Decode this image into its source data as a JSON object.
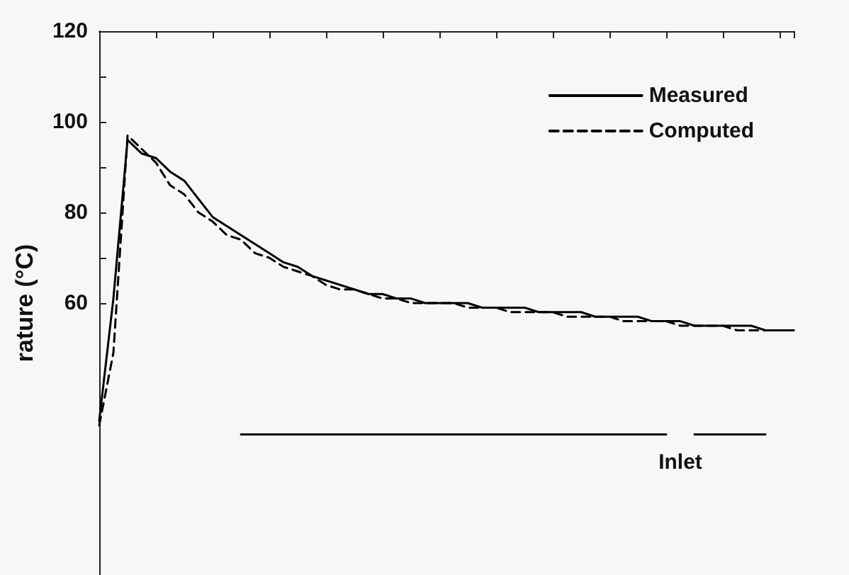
{
  "chart_data": {
    "type": "line",
    "ylabel": "rature (°C)",
    "categories": [
      null,
      null,
      null,
      null,
      null,
      null,
      null,
      null,
      null,
      null,
      null,
      null,
      null,
      null,
      null,
      null,
      null,
      null,
      null,
      null,
      null,
      null,
      null,
      null,
      null,
      null,
      null,
      null,
      null,
      null,
      null,
      null,
      null,
      null,
      null,
      null,
      null,
      null,
      null,
      null,
      null,
      null,
      null,
      null,
      null,
      null,
      null,
      null,
      null,
      null
    ],
    "series": [
      {
        "name": "Measured",
        "color": "#000000",
        "line_style": "solid",
        "values": [
          34,
          61,
          96,
          93,
          92,
          89,
          87,
          83,
          79,
          77,
          75,
          73,
          71,
          69,
          68,
          66,
          65,
          64,
          63,
          62,
          62,
          61,
          61,
          60,
          60,
          60,
          60,
          59,
          59,
          59,
          59,
          58,
          58,
          58,
          58,
          57,
          57,
          57,
          57,
          56,
          56,
          56,
          55,
          55,
          55,
          55,
          55,
          54,
          54,
          54
        ]
      },
      {
        "name": "Computed",
        "color": "#000000",
        "line_style": "dashed",
        "values": [
          33,
          49,
          97,
          94,
          91,
          86,
          84,
          80,
          78,
          75,
          74,
          71,
          70,
          68,
          67,
          66,
          64,
          63,
          63,
          62,
          61,
          61,
          60,
          60,
          60,
          60,
          59,
          59,
          59,
          58,
          58,
          58,
          58,
          57,
          57,
          57,
          57,
          56,
          56,
          56,
          56,
          55,
          55,
          55,
          55,
          54,
          54,
          54,
          54,
          54
        ]
      },
      {
        "name": "Inlet",
        "color": "#000000",
        "line_style": "solid",
        "values": [
          null,
          null,
          null,
          null,
          null,
          null,
          null,
          null,
          null,
          null,
          31,
          31,
          31,
          31,
          31,
          31,
          31,
          31,
          31,
          31,
          31,
          31,
          31,
          31,
          31,
          31,
          31,
          31,
          31,
          31,
          31,
          31,
          31,
          31,
          31,
          31,
          31,
          31,
          31,
          31,
          31,
          null,
          31,
          31,
          31,
          31,
          31,
          31,
          null,
          null
        ]
      }
    ],
    "ylim": [
      0,
      120
    ],
    "yticks": [
      60,
      {
        "value": 70,
        "label": null
      },
      80,
      {
        "value": 90,
        "label": null
      },
      100,
      {
        "value": 110,
        "label": null
      },
      120
    ],
    "marker": "none",
    "grid": false,
    "legend": "top right"
  }
}
